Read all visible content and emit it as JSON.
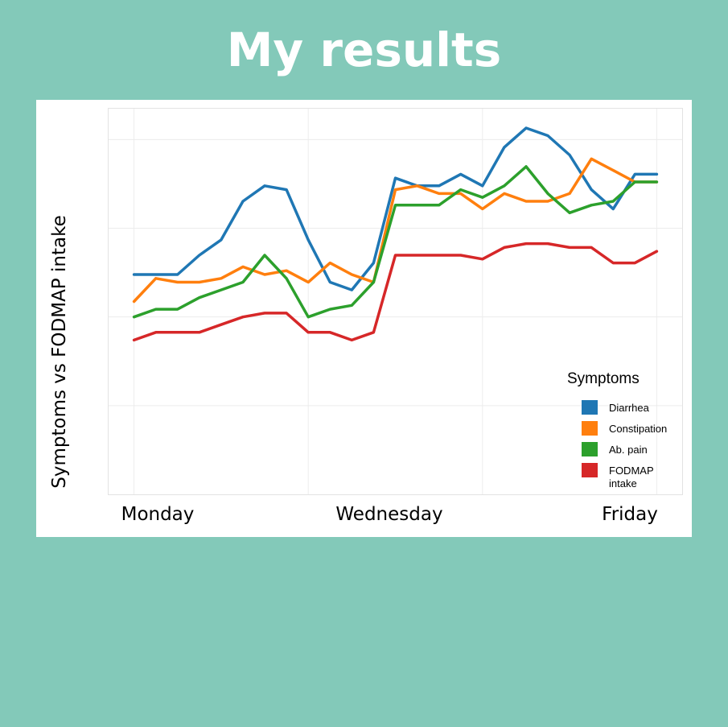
{
  "page": {
    "title": "My results"
  },
  "chart_data": {
    "type": "line",
    "ylabel": "Symptoms vs FODMAP intake",
    "x_tick_labels": [
      "Monday",
      "Wednesday",
      "Friday"
    ],
    "x": [
      0,
      0.3,
      0.6,
      0.9,
      1.2,
      1.5,
      1.8,
      2.1,
      2.4,
      2.7,
      3.0,
      3.3,
      3.6,
      3.9,
      4.2,
      4.5,
      4.8,
      5.1,
      5.4,
      5.7,
      6.0,
      6.3,
      6.6,
      6.9,
      7.2
    ],
    "xlim": [
      -0.35,
      7.55
    ],
    "ylim": [
      0,
      10
    ],
    "grid": true,
    "legend": {
      "title": "Symptoms",
      "position": "bottom-right"
    },
    "series": [
      {
        "name": "Diarrhea",
        "color": "#1f77b4",
        "values": [
          5.7,
          5.7,
          5.7,
          6.2,
          6.6,
          7.6,
          8.0,
          7.9,
          6.6,
          5.5,
          5.3,
          6.0,
          8.2,
          8.0,
          8.0,
          8.3,
          8.0,
          9.0,
          9.5,
          9.3,
          8.8,
          7.9,
          7.4,
          8.3,
          8.3
        ],
        "values_note": "Diarrhea"
      },
      {
        "name": "Constipation",
        "color": "#ff7f0e",
        "values": [
          5.0,
          5.6,
          5.5,
          5.5,
          5.6,
          5.9,
          5.7,
          5.8,
          5.5,
          6.0,
          5.7,
          5.5,
          7.9,
          8.0,
          7.8,
          7.8,
          7.4,
          7.8,
          7.6,
          7.6,
          7.8,
          8.7,
          8.4,
          8.1,
          8.1
        ],
        "values_note": "Constipation"
      },
      {
        "name": "Ab. pain",
        "color": "#2ca02c",
        "values": [
          4.6,
          4.8,
          4.8,
          5.1,
          5.3,
          5.5,
          6.2,
          5.6,
          4.6,
          4.8,
          4.9,
          5.5,
          7.5,
          7.5,
          7.5,
          7.9,
          7.7,
          8.0,
          8.5,
          7.8,
          7.3,
          7.5,
          7.6,
          8.1,
          8.1
        ],
        "values_note": "Ab. pain"
      },
      {
        "name": "FODMAP intake",
        "color": "#d62728",
        "values": [
          4.0,
          4.2,
          4.2,
          4.2,
          4.4,
          4.6,
          4.7,
          4.7,
          4.2,
          4.2,
          4.0,
          4.2,
          6.2,
          6.2,
          6.2,
          6.2,
          6.1,
          6.4,
          6.5,
          6.5,
          6.4,
          6.4,
          6.0,
          6.0,
          6.3
        ],
        "values_note": "FODMAP intake"
      }
    ]
  }
}
